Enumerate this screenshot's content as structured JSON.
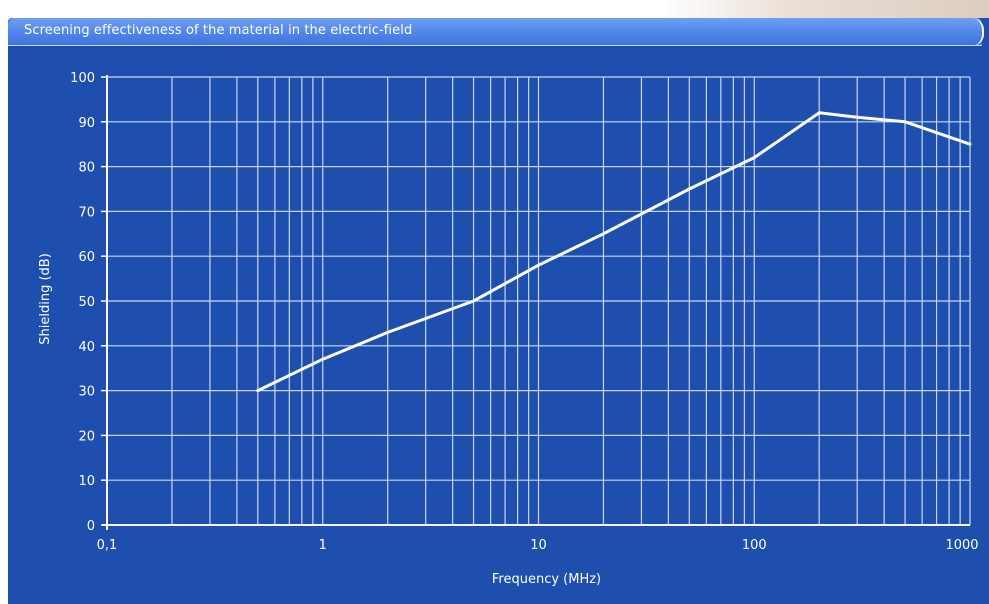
{
  "window": {
    "title": "Screening effectiveness of the material in the electric-field"
  },
  "colors": {
    "panel": "#1f4fae",
    "title_bar": "#4f86ea",
    "grid": "#c8d6f2",
    "line": "#ffffff",
    "text": "#ffffff"
  },
  "chart_data": {
    "type": "line",
    "title": "Screening effectiveness of the material in the electric-field",
    "xlabel": "Frequency (MHz)",
    "ylabel": "Shielding (dB)",
    "xscale": "log",
    "xlim": [
      0.1,
      1000
    ],
    "ylim": [
      0,
      100
    ],
    "grid": true,
    "x_tick_labels": [
      "0,1",
      "1",
      "10",
      "100",
      "1000"
    ],
    "x_tick_values": [
      0.1,
      1,
      10,
      100,
      1000
    ],
    "y_tick_labels": [
      "0",
      "10",
      "20",
      "30",
      "40",
      "50",
      "60",
      "70",
      "80",
      "90",
      "100"
    ],
    "y_tick_values": [
      0,
      10,
      20,
      30,
      40,
      50,
      60,
      70,
      80,
      90,
      100
    ],
    "series": [
      {
        "x": [
          0.5,
          1,
          2,
          5,
          10,
          20,
          50,
          100,
          200,
          300,
          500,
          1000
        ],
        "y": [
          30,
          37,
          43,
          50,
          58,
          65,
          75,
          82,
          92,
          91,
          90,
          85
        ]
      }
    ]
  }
}
